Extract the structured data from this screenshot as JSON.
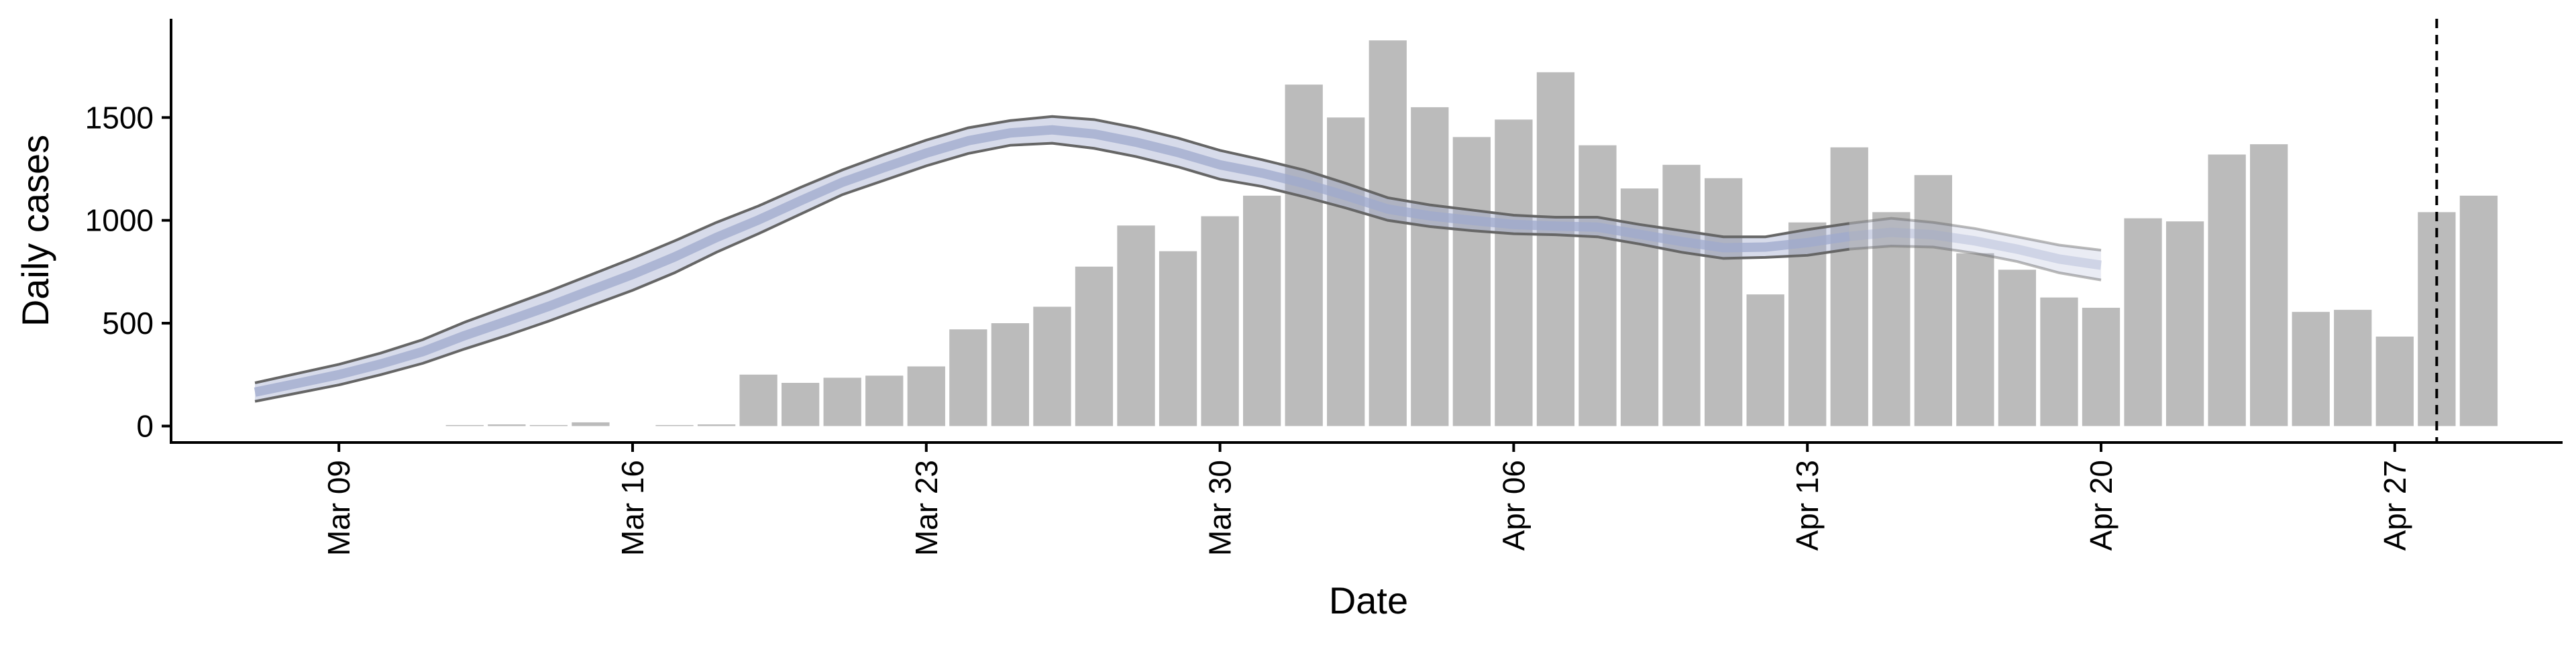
{
  "chart_data": {
    "type": "bar",
    "xlabel": "Date",
    "ylabel": "Daily cases",
    "ylim": [
      -80,
      1980
    ],
    "grid": false,
    "x_start": "Mar 05",
    "x_end": "May 01",
    "x_ticks": [
      {
        "date": "Mar 09",
        "label": "Mar 09"
      },
      {
        "date": "Mar 16",
        "label": "Mar 16"
      },
      {
        "date": "Mar 23",
        "label": "Mar 23"
      },
      {
        "date": "Mar 30",
        "label": "Mar 30"
      },
      {
        "date": "Apr 06",
        "label": "Apr 06"
      },
      {
        "date": "Apr 13",
        "label": "Apr 13"
      },
      {
        "date": "Apr 20",
        "label": "Apr 20"
      },
      {
        "date": "Apr 27",
        "label": "Apr 27"
      }
    ],
    "y_ticks": [
      0,
      500,
      1000,
      1500
    ],
    "bars": {
      "color": "#bbbbbb",
      "dates": [
        "Mar 12",
        "Mar 13",
        "Mar 14",
        "Mar 15",
        "Mar 16",
        "Mar 17",
        "Mar 18",
        "Mar 19",
        "Mar 20",
        "Mar 21",
        "Mar 22",
        "Mar 23",
        "Mar 24",
        "Mar 25",
        "Mar 26",
        "Mar 27",
        "Mar 28",
        "Mar 29",
        "Mar 30",
        "Mar 31",
        "Apr 01",
        "Apr 02",
        "Apr 03",
        "Apr 04",
        "Apr 05",
        "Apr 06",
        "Apr 07",
        "Apr 08",
        "Apr 09",
        "Apr 10",
        "Apr 11",
        "Apr 12",
        "Apr 13",
        "Apr 14",
        "Apr 15",
        "Apr 16",
        "Apr 17",
        "Apr 18",
        "Apr 19",
        "Apr 20",
        "Apr 21",
        "Apr 22",
        "Apr 23",
        "Apr 24",
        "Apr 25",
        "Apr 26",
        "Apr 27",
        "Apr 28",
        "Apr 29"
      ],
      "values": [
        5,
        8,
        5,
        18,
        0,
        5,
        8,
        250,
        210,
        235,
        245,
        290,
        470,
        500,
        580,
        775,
        975,
        850,
        1020,
        1120,
        1660,
        1500,
        1875,
        1550,
        1405,
        1490,
        1720,
        1365,
        1155,
        1270,
        1205,
        640,
        990,
        1355,
        1040,
        1220,
        840,
        760,
        625,
        575,
        1010,
        995,
        1320,
        1370,
        555,
        565,
        435,
        1040,
        1120
      ]
    },
    "estimate": {
      "dates": [
        "Mar 07",
        "Mar 08",
        "Mar 09",
        "Mar 10",
        "Mar 11",
        "Mar 12",
        "Mar 13",
        "Mar 14",
        "Mar 15",
        "Mar 16",
        "Mar 17",
        "Mar 18",
        "Mar 19",
        "Mar 20",
        "Mar 21",
        "Mar 22",
        "Mar 23",
        "Mar 24",
        "Mar 25",
        "Mar 26",
        "Mar 27",
        "Mar 28",
        "Mar 29",
        "Mar 30",
        "Mar 31",
        "Apr 01",
        "Apr 02",
        "Apr 03",
        "Apr 04",
        "Apr 05",
        "Apr 06",
        "Apr 07",
        "Apr 08",
        "Apr 09",
        "Apr 10",
        "Apr 11",
        "Apr 12",
        "Apr 13",
        "Apr 14",
        "Apr 15",
        "Apr 16",
        "Apr 17",
        "Apr 18",
        "Apr 19",
        "Apr 20"
      ],
      "upper": [
        210,
        255,
        300,
        355,
        420,
        505,
        580,
        655,
        735,
        815,
        900,
        990,
        1070,
        1160,
        1245,
        1320,
        1390,
        1450,
        1485,
        1505,
        1490,
        1450,
        1400,
        1340,
        1295,
        1245,
        1180,
        1110,
        1075,
        1050,
        1025,
        1015,
        1015,
        980,
        950,
        920,
        920,
        955,
        985,
        1010,
        990,
        960,
        920,
        880,
        855
      ],
      "lower": [
        120,
        160,
        200,
        250,
        305,
        375,
        440,
        510,
        585,
        660,
        745,
        845,
        935,
        1030,
        1125,
        1195,
        1265,
        1325,
        1365,
        1375,
        1350,
        1310,
        1260,
        1200,
        1165,
        1115,
        1060,
        1000,
        970,
        950,
        935,
        930,
        920,
        885,
        845,
        815,
        820,
        830,
        860,
        875,
        870,
        840,
        800,
        745,
        710
      ],
      "mid": [
        165,
        207,
        250,
        302,
        362,
        440,
        510,
        582,
        660,
        737,
        822,
        917,
        1002,
        1095,
        1185,
        1257,
        1327,
        1387,
        1425,
        1440,
        1420,
        1380,
        1330,
        1270,
        1230,
        1180,
        1120,
        1055,
        1022,
        1000,
        980,
        972,
        967,
        932,
        897,
        867,
        870,
        892,
        922,
        942,
        930,
        900,
        860,
        812,
        782
      ],
      "band_color": "#9fa9cc",
      "edge_color": "#666666",
      "forecast_from": "Apr 14"
    },
    "vline": {
      "date": "Apr 28"
    }
  }
}
